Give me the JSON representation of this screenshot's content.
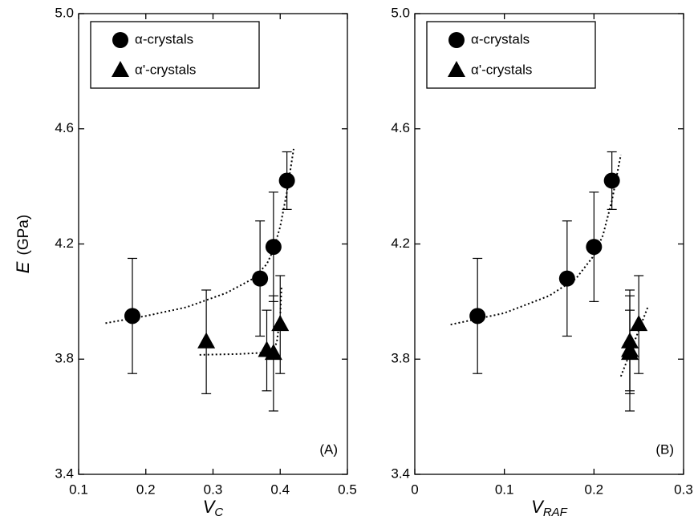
{
  "chart_data": [
    {
      "type": "scatter",
      "panel_label": "(A)",
      "legend": "upper left",
      "xlabel": {
        "symbol": "V",
        "subscript": "C"
      },
      "ylabel": {
        "symbol": "E",
        "unit": "(GPa)"
      },
      "xlim": [
        0.1,
        0.5
      ],
      "xticks": [
        0.1,
        0.2,
        0.3,
        0.4,
        0.5
      ],
      "ylim": [
        3.4,
        5.0
      ],
      "yticks": [
        3.4,
        3.8,
        4.2,
        4.6,
        {
          "value": 5.0,
          "label": "5.0"
        }
      ],
      "series": [
        {
          "name": "α-crystals",
          "marker": "circle",
          "color": "#000000",
          "x": [
            0.18,
            0.37,
            0.39,
            0.41
          ],
          "values": [
            3.95,
            4.08,
            4.19,
            4.42
          ],
          "errors": [
            0.2,
            0.2,
            0.19,
            0.1
          ]
        },
        {
          "name": "α'-crystals",
          "marker": "triangle",
          "color": "#000000",
          "x": [
            0.29,
            0.38,
            0.39,
            0.4
          ],
          "values": [
            3.86,
            3.83,
            3.82,
            3.92
          ],
          "errors": [
            0.18,
            0.14,
            0.2,
            0.17
          ]
        }
      ],
      "fits": [
        {
          "x": [
            0.14,
            0.2,
            0.26,
            0.32,
            0.36,
            0.38,
            0.39,
            0.4,
            0.41,
            0.42
          ],
          "values": [
            3.925,
            3.95,
            3.98,
            4.03,
            4.08,
            4.13,
            4.18,
            4.26,
            4.38,
            4.53
          ]
        },
        {
          "x": [
            0.28,
            0.34,
            0.38,
            0.39,
            0.395,
            0.4,
            0.402
          ],
          "values": [
            3.815,
            3.818,
            3.823,
            3.83,
            3.86,
            3.95,
            4.05
          ]
        }
      ]
    },
    {
      "type": "scatter",
      "panel_label": "(B)",
      "legend": "upper left",
      "xlabel": {
        "symbol": "V",
        "subscript": "RAF"
      },
      "xlim": [
        0,
        0.3
      ],
      "xticks": [
        0,
        0.1,
        0.2,
        0.3
      ],
      "ylim": [
        3.4,
        5.0
      ],
      "yticks": [
        3.4,
        3.8,
        4.2,
        4.6,
        {
          "value": 5.0,
          "label": "5.0"
        }
      ],
      "series": [
        {
          "name": "α-crystals",
          "marker": "circle",
          "color": "#000000",
          "x": [
            0.07,
            0.17,
            0.2,
            0.22
          ],
          "values": [
            3.95,
            4.08,
            4.19,
            4.42
          ],
          "errors": [
            0.2,
            0.2,
            0.19,
            0.1
          ]
        },
        {
          "name": "α'-crystals",
          "marker": "triangle",
          "color": "#000000",
          "x": [
            0.24,
            0.24,
            0.24,
            0.25
          ],
          "values": [
            3.86,
            3.83,
            3.82,
            3.92
          ],
          "errors": [
            0.18,
            0.14,
            0.2,
            0.17
          ]
        }
      ],
      "fits": [
        {
          "x": [
            0.04,
            0.1,
            0.15,
            0.18,
            0.2,
            0.21,
            0.22,
            0.23
          ],
          "values": [
            3.92,
            3.96,
            4.02,
            4.08,
            4.16,
            4.23,
            4.35,
            4.51
          ]
        },
        {
          "x": [
            0.23,
            0.26
          ],
          "values": [
            3.74,
            3.98
          ]
        }
      ]
    }
  ]
}
